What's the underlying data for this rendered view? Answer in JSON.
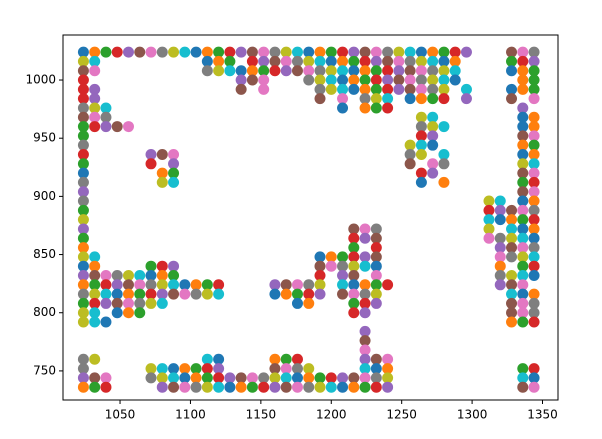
{
  "chart_data": {
    "type": "scatter",
    "xlim": [
      1009.5,
      1361
    ],
    "ylim": [
      725,
      1038.7
    ],
    "xticks": [
      1050,
      1100,
      1150,
      1200,
      1250,
      1300,
      1350
    ],
    "yticks": [
      750,
      800,
      850,
      900,
      950,
      1000
    ],
    "colors": [
      "#1f77b4",
      "#ff7f0e",
      "#2ca02c",
      "#d62728",
      "#9467bd",
      "#8c564b",
      "#e377c2",
      "#7f7f7f",
      "#bcbd22",
      "#17becf"
    ],
    "series": [
      {
        "x": [
          1024,
          1032,
          1040,
          1048,
          1056,
          1064,
          1072,
          1080,
          1088,
          1096,
          1104,
          1112,
          1120,
          1128,
          1136,
          1144,
          1152,
          1160,
          1168,
          1176,
          1184,
          1192,
          1200,
          1208,
          1216,
          1224,
          1232,
          1240,
          1248,
          1256,
          1264,
          1272,
          1280,
          1288,
          1296,
          1328,
          1336,
          1344
        ],
        "values": [
          1024,
          1024,
          1024,
          1024,
          1024,
          1024,
          1024,
          1024,
          1024,
          1024,
          1024,
          1024,
          1024,
          1024,
          1024,
          1024,
          1024,
          1024,
          1024,
          1024,
          1024,
          1024,
          1024,
          1024,
          1024,
          1024,
          1024,
          1024,
          1024,
          1024,
          1024,
          1024,
          1024,
          1024,
          1024,
          1024,
          1024,
          1024
        ]
      },
      {
        "x": [
          1024,
          1032,
          1112,
          1120,
          1128,
          1144,
          1152,
          1160,
          1168,
          1176,
          1184,
          1192,
          1200,
          1208,
          1216,
          1224,
          1232,
          1240,
          1248,
          1256,
          1264,
          1272,
          1280,
          1288,
          1328,
          1336,
          1344
        ],
        "values": [
          1016,
          1016,
          1016,
          1016,
          1016,
          1016,
          1016,
          1016,
          1016,
          1016,
          1016,
          1016,
          1016,
          1016,
          1016,
          1016,
          1016,
          1016,
          1016,
          1016,
          1016,
          1016,
          1016,
          1016,
          1016,
          1016,
          1016
        ]
      },
      {
        "x": [
          1024,
          1032,
          1112,
          1120,
          1128,
          1136,
          1144,
          1152,
          1160,
          1168,
          1176,
          1184,
          1192,
          1200,
          1208,
          1216,
          1224,
          1232,
          1240,
          1248,
          1256,
          1264,
          1272,
          1280,
          1288,
          1328,
          1336,
          1344
        ],
        "values": [
          1008,
          1008,
          1008,
          1008,
          1008,
          1008,
          1008,
          1008,
          1008,
          1008,
          1008,
          1008,
          1008,
          1008,
          1008,
          1008,
          1008,
          1008,
          1008,
          1008,
          1008,
          1008,
          1008,
          1008,
          1008,
          1008,
          1008,
          1008
        ]
      },
      {
        "x": [
          1024,
          1136,
          1144,
          1152,
          1184,
          1192,
          1200,
          1208,
          1216,
          1224,
          1232,
          1240,
          1248,
          1256,
          1264,
          1272,
          1280,
          1288,
          1336,
          1344
        ],
        "values": [
          1000,
          1000,
          1000,
          1000,
          1000,
          1000,
          1000,
          1000,
          1000,
          1000,
          1000,
          1000,
          1000,
          1000,
          1000,
          1000,
          1000,
          1000,
          1000,
          1000
        ]
      },
      {
        "x": [
          1024,
          1032,
          1136,
          1152,
          1192,
          1200,
          1208,
          1216,
          1224,
          1232,
          1240,
          1248,
          1256,
          1264,
          1272,
          1280,
          1296,
          1328,
          1336,
          1344
        ],
        "values": [
          992,
          992,
          992,
          992,
          992,
          992,
          992,
          992,
          992,
          992,
          992,
          992,
          992,
          992,
          992,
          992,
          992,
          992,
          992,
          992
        ]
      },
      {
        "x": [
          1024,
          1032,
          1192,
          1208,
          1224,
          1232,
          1240,
          1256,
          1264,
          1272,
          1280,
          1296,
          1328,
          1344
        ],
        "values": [
          984,
          984,
          984,
          984,
          984,
          984,
          984,
          984,
          984,
          984,
          984,
          984,
          984,
          984
        ]
      },
      {
        "x": [
          1024,
          1032,
          1040,
          1208,
          1224,
          1232,
          1240,
          1336
        ],
        "values": [
          976,
          976,
          976,
          976,
          976,
          976,
          976,
          976
        ]
      },
      {
        "x": [
          1024,
          1032,
          1040,
          1264,
          1272,
          1336,
          1344
        ],
        "values": [
          968,
          968,
          968,
          968,
          968,
          968,
          968
        ]
      },
      {
        "x": [
          1024,
          1032,
          1040,
          1048,
          1056,
          1264,
          1272,
          1280,
          1336,
          1344
        ],
        "values": [
          960,
          960,
          960,
          960,
          960,
          960,
          960,
          960,
          960,
          960
        ]
      },
      {
        "x": [
          1024,
          1264,
          1272,
          1336,
          1344
        ],
        "values": [
          952,
          952,
          952,
          952,
          952
        ]
      },
      {
        "x": [
          1024,
          1256,
          1264,
          1272,
          1336,
          1344
        ],
        "values": [
          944,
          944,
          944,
          944,
          944,
          944
        ]
      },
      {
        "x": [
          1024,
          1072,
          1080,
          1088,
          1256,
          1264,
          1280,
          1336,
          1344
        ],
        "values": [
          936,
          936,
          936,
          936,
          936,
          936,
          936,
          936,
          936
        ]
      },
      {
        "x": [
          1024,
          1072,
          1088,
          1256,
          1272,
          1280,
          1336,
          1344
        ],
        "values": [
          928,
          928,
          928,
          928,
          928,
          928,
          928,
          928
        ]
      },
      {
        "x": [
          1024,
          1080,
          1088,
          1264,
          1272,
          1336,
          1344
        ],
        "values": [
          920,
          920,
          920,
          920,
          920,
          920,
          920
        ]
      },
      {
        "x": [
          1024,
          1080,
          1088,
          1264,
          1280,
          1336,
          1344
        ],
        "values": [
          912,
          912,
          912,
          912,
          912,
          912,
          912
        ]
      },
      {
        "x": [
          1024,
          1336,
          1344
        ],
        "values": [
          904,
          904,
          904
        ]
      },
      {
        "x": [
          1024,
          1312,
          1320,
          1336,
          1344
        ],
        "values": [
          896,
          896,
          896,
          896,
          896
        ]
      },
      {
        "x": [
          1024,
          1312,
          1320,
          1328,
          1336,
          1344
        ],
        "values": [
          888,
          888,
          888,
          888,
          888,
          888
        ]
      },
      {
        "x": [
          1024,
          1312,
          1320,
          1328,
          1336,
          1344
        ],
        "values": [
          880,
          880,
          880,
          880,
          880,
          880
        ]
      },
      {
        "x": [
          1024,
          1216,
          1224,
          1232,
          1312,
          1328,
          1336,
          1344
        ],
        "values": [
          872,
          872,
          872,
          872,
          872,
          872,
          872,
          872
        ]
      },
      {
        "x": [
          1024,
          1216,
          1224,
          1232,
          1312,
          1320,
          1328,
          1336,
          1344
        ],
        "values": [
          864,
          864,
          864,
          864,
          864,
          864,
          864,
          864,
          864
        ]
      },
      {
        "x": [
          1024,
          1216,
          1232,
          1320,
          1328,
          1336,
          1344
        ],
        "values": [
          856,
          856,
          856,
          856,
          856,
          856,
          856
        ]
      },
      {
        "x": [
          1024,
          1032,
          1192,
          1200,
          1208,
          1216,
          1224,
          1232,
          1320,
          1328,
          1336,
          1344
        ],
        "values": [
          848,
          848,
          848,
          848,
          848,
          848,
          848,
          848,
          848,
          848,
          848,
          848
        ]
      },
      {
        "x": [
          1024,
          1032,
          1072,
          1080,
          1088,
          1192,
          1200,
          1208,
          1216,
          1224,
          1232,
          1320,
          1336,
          1344
        ],
        "values": [
          840,
          840,
          840,
          840,
          840,
          840,
          840,
          840,
          840,
          840,
          840,
          840,
          840,
          840
        ]
      },
      {
        "x": [
          1024,
          1032,
          1040,
          1048,
          1056,
          1064,
          1072,
          1080,
          1088,
          1192,
          1208,
          1216,
          1232,
          1320,
          1328,
          1336,
          1344
        ],
        "values": [
          832,
          832,
          832,
          832,
          832,
          832,
          832,
          832,
          832,
          832,
          832,
          832,
          832,
          832,
          832,
          832,
          832
        ]
      },
      {
        "x": [
          1024,
          1032,
          1040,
          1048,
          1056,
          1064,
          1072,
          1080,
          1088,
          1096,
          1104,
          1112,
          1120,
          1160,
          1168,
          1176,
          1184,
          1192,
          1208,
          1216,
          1224,
          1232,
          1240,
          1320,
          1328,
          1336
        ],
        "values": [
          824,
          824,
          824,
          824,
          824,
          824,
          824,
          824,
          824,
          824,
          824,
          824,
          824,
          824,
          824,
          824,
          824,
          824,
          824,
          824,
          824,
          824,
          824,
          824,
          824,
          824
        ]
      },
      {
        "x": [
          1024,
          1032,
          1040,
          1048,
          1056,
          1064,
          1072,
          1080,
          1088,
          1096,
          1104,
          1112,
          1120,
          1160,
          1168,
          1176,
          1184,
          1192,
          1208,
          1216,
          1224,
          1232,
          1328,
          1336,
          1344
        ],
        "values": [
          816,
          816,
          816,
          816,
          816,
          816,
          816,
          816,
          816,
          816,
          816,
          816,
          816,
          816,
          816,
          816,
          816,
          816,
          816,
          816,
          816,
          816,
          816,
          816,
          816
        ]
      },
      {
        "x": [
          1024,
          1032,
          1040,
          1048,
          1056,
          1064,
          1072,
          1080,
          1176,
          1184,
          1216,
          1224,
          1232,
          1328,
          1336,
          1344
        ],
        "values": [
          808,
          808,
          808,
          808,
          808,
          808,
          808,
          808,
          808,
          808,
          808,
          808,
          808,
          808,
          808,
          808
        ]
      },
      {
        "x": [
          1024,
          1032,
          1048,
          1056,
          1064,
          1216,
          1224,
          1328,
          1336,
          1344
        ],
        "values": [
          800,
          800,
          800,
          800,
          800,
          800,
          800,
          800,
          800,
          800
        ]
      },
      {
        "x": [
          1024,
          1032,
          1040,
          1328,
          1336,
          1344
        ],
        "values": [
          792,
          792,
          792,
          792,
          792,
          792
        ]
      },
      {
        "x": [
          1224
        ],
        "values": [
          784
        ]
      },
      {
        "x": [
          1224
        ],
        "values": [
          776
        ]
      },
      {
        "x": [
          1224
        ],
        "values": [
          768
        ]
      },
      {
        "x": [
          1024,
          1032,
          1112,
          1120,
          1160,
          1168,
          1176,
          1224,
          1232,
          1240
        ],
        "values": [
          760,
          760,
          760,
          760,
          760,
          760,
          760,
          760,
          760,
          760
        ]
      },
      {
        "x": [
          1024,
          1072,
          1080,
          1088,
          1096,
          1104,
          1112,
          1120,
          1160,
          1168,
          1176,
          1184,
          1224,
          1232,
          1240,
          1336,
          1344
        ],
        "values": [
          752,
          752,
          752,
          752,
          752,
          752,
          752,
          752,
          752,
          752,
          752,
          752,
          752,
          752,
          752,
          752,
          752
        ]
      },
      {
        "x": [
          1024,
          1032,
          1040,
          1072,
          1080,
          1088,
          1096,
          1104,
          1112,
          1120,
          1128,
          1136,
          1144,
          1152,
          1160,
          1168,
          1176,
          1184,
          1192,
          1200,
          1208,
          1216,
          1224,
          1232,
          1240,
          1336,
          1344
        ],
        "values": [
          744,
          744,
          744,
          744,
          744,
          744,
          744,
          744,
          744,
          744,
          744,
          744,
          744,
          744,
          744,
          744,
          744,
          744,
          744,
          744,
          744,
          744,
          744,
          744,
          744,
          744,
          744
        ]
      },
      {
        "x": [
          1024,
          1032,
          1040,
          1080,
          1088,
          1096,
          1104,
          1112,
          1120,
          1128,
          1136,
          1144,
          1152,
          1160,
          1168,
          1176,
          1184,
          1192,
          1200,
          1208,
          1216,
          1224,
          1232,
          1240,
          1336,
          1344
        ],
        "values": [
          736,
          736,
          736,
          736,
          736,
          736,
          736,
          736,
          736,
          736,
          736,
          736,
          736,
          736,
          736,
          736,
          736,
          736,
          736,
          736,
          736,
          736,
          736,
          736,
          736,
          736
        ]
      }
    ]
  }
}
